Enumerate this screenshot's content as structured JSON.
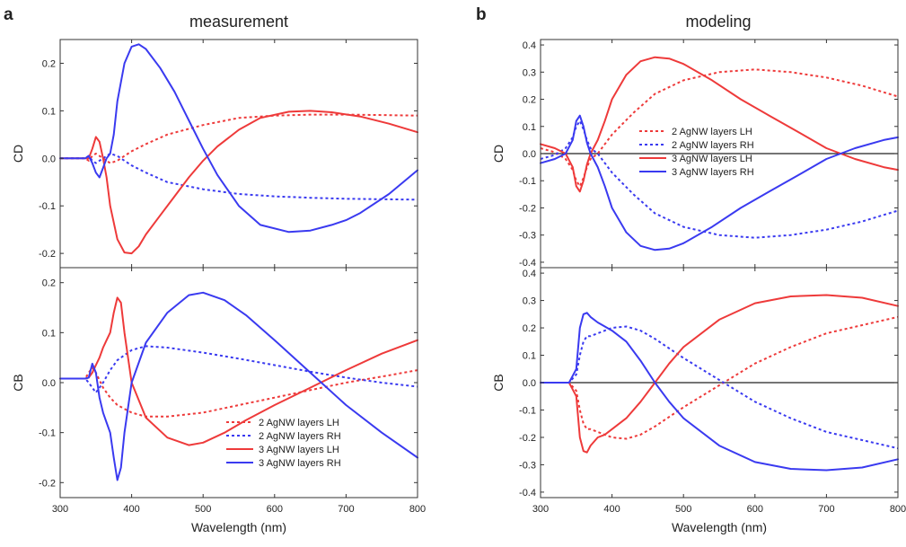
{
  "figure": {
    "panels": [
      {
        "letter": "a",
        "title": "measurement"
      },
      {
        "letter": "b",
        "title": "modeling"
      }
    ]
  },
  "colors": {
    "LH": "#ee3a3a",
    "RH": "#3a3af0",
    "axis": "#333333",
    "zero_line": "#222222"
  },
  "chart_data": [
    {
      "type": "line",
      "panel": "a",
      "title": "measurement",
      "ylabel": "CD",
      "xlabel": "",
      "xlim": [
        300,
        800
      ],
      "ylim": [
        -0.23,
        0.25
      ],
      "yticks": [
        -0.2,
        -0.1,
        0.0,
        0.1,
        0.2
      ],
      "zero_line": false,
      "legend": null,
      "series": [
        {
          "name": "2 AgNW layers LH",
          "style": "dotted",
          "color_key": "LH",
          "x": [
            300,
            320,
            335,
            340,
            345,
            350,
            355,
            360,
            370,
            380,
            390,
            400,
            420,
            450,
            500,
            550,
            600,
            650,
            700,
            750,
            800
          ],
          "y": [
            0.0,
            0.0,
            0.0,
            -0.005,
            0.005,
            0.01,
            0.005,
            0.0,
            -0.01,
            -0.005,
            0.005,
            0.015,
            0.03,
            0.05,
            0.07,
            0.085,
            0.09,
            0.092,
            0.092,
            0.091,
            0.09
          ]
        },
        {
          "name": "2 AgNW layers RH",
          "style": "dotted",
          "color_key": "RH",
          "x": [
            300,
            320,
            335,
            340,
            345,
            350,
            355,
            360,
            370,
            380,
            390,
            400,
            420,
            450,
            500,
            550,
            600,
            650,
            700,
            750,
            800
          ],
          "y": [
            0.0,
            0.0,
            0.0,
            0.005,
            -0.005,
            -0.01,
            -0.005,
            0.0,
            0.01,
            0.005,
            -0.005,
            -0.015,
            -0.03,
            -0.05,
            -0.065,
            -0.075,
            -0.08,
            -0.083,
            -0.085,
            -0.086,
            -0.087
          ]
        },
        {
          "name": "3 AgNW layers LH",
          "style": "solid",
          "color_key": "LH",
          "x": [
            300,
            320,
            335,
            340,
            345,
            350,
            355,
            360,
            365,
            370,
            380,
            390,
            400,
            410,
            420,
            440,
            460,
            480,
            500,
            520,
            550,
            580,
            620,
            650,
            680,
            720,
            760,
            800
          ],
          "y": [
            0.0,
            0.0,
            0.0,
            0.0,
            0.02,
            0.045,
            0.035,
            0.0,
            -0.04,
            -0.1,
            -0.17,
            -0.198,
            -0.2,
            -0.185,
            -0.16,
            -0.12,
            -0.08,
            -0.04,
            -0.005,
            0.025,
            0.06,
            0.085,
            0.098,
            0.1,
            0.097,
            0.088,
            0.073,
            0.055
          ]
        },
        {
          "name": "3 AgNW layers RH",
          "style": "solid",
          "color_key": "RH",
          "x": [
            300,
            320,
            335,
            340,
            345,
            350,
            355,
            360,
            365,
            370,
            375,
            380,
            390,
            400,
            410,
            420,
            440,
            460,
            480,
            500,
            520,
            550,
            580,
            620,
            650,
            680,
            700,
            720,
            760,
            800
          ],
          "y": [
            0.0,
            0.0,
            0.0,
            0.005,
            -0.01,
            -0.03,
            -0.04,
            -0.02,
            0.0,
            0.01,
            0.05,
            0.12,
            0.2,
            0.235,
            0.24,
            0.23,
            0.19,
            0.14,
            0.08,
            0.02,
            -0.035,
            -0.1,
            -0.14,
            -0.155,
            -0.152,
            -0.14,
            -0.13,
            -0.115,
            -0.075,
            -0.025
          ]
        }
      ]
    },
    {
      "type": "line",
      "panel": "a",
      "ylabel": "CB",
      "xlabel": "Wavelength (nm)",
      "xlim": [
        300,
        800
      ],
      "ylim": [
        -0.23,
        0.23
      ],
      "xticks": [
        300,
        400,
        500,
        600,
        700,
        800
      ],
      "yticks": [
        -0.2,
        -0.1,
        0.0,
        0.1,
        0.2
      ],
      "zero_line": false,
      "legend": "lower-right",
      "series": [
        {
          "name": "2 AgNW layers LH",
          "style": "dotted",
          "color_key": "LH",
          "x": [
            300,
            320,
            335,
            340,
            345,
            350,
            360,
            370,
            380,
            400,
            420,
            450,
            500,
            550,
            600,
            650,
            700,
            750,
            800
          ],
          "y": [
            0.008,
            0.008,
            0.008,
            0.02,
            0.03,
            0.02,
            -0.01,
            -0.03,
            -0.045,
            -0.06,
            -0.068,
            -0.068,
            -0.06,
            -0.045,
            -0.03,
            -0.015,
            0.0,
            0.012,
            0.025
          ]
        },
        {
          "name": "2 AgNW layers RH",
          "style": "dotted",
          "color_key": "RH",
          "x": [
            300,
            320,
            335,
            340,
            345,
            350,
            360,
            370,
            380,
            400,
            420,
            450,
            500,
            550,
            600,
            650,
            700,
            750,
            800
          ],
          "y": [
            0.008,
            0.008,
            0.008,
            0.0,
            -0.01,
            -0.02,
            0.0,
            0.025,
            0.045,
            0.065,
            0.073,
            0.07,
            0.06,
            0.048,
            0.035,
            0.022,
            0.01,
            0.0,
            -0.008
          ]
        },
        {
          "name": "3 AgNW layers LH",
          "style": "solid",
          "color_key": "LH",
          "x": [
            300,
            320,
            335,
            340,
            345,
            350,
            355,
            360,
            365,
            370,
            375,
            380,
            385,
            390,
            400,
            420,
            450,
            480,
            500,
            530,
            560,
            600,
            650,
            700,
            750,
            800
          ],
          "y": [
            0.008,
            0.008,
            0.008,
            0.01,
            0.02,
            0.035,
            0.05,
            0.07,
            0.085,
            0.1,
            0.14,
            0.17,
            0.16,
            0.1,
            0.0,
            -0.07,
            -0.11,
            -0.125,
            -0.12,
            -0.1,
            -0.075,
            -0.045,
            -0.01,
            0.025,
            0.058,
            0.085
          ]
        },
        {
          "name": "3 AgNW layers RH",
          "style": "solid",
          "color_key": "RH",
          "x": [
            300,
            320,
            335,
            340,
            345,
            350,
            355,
            360,
            365,
            370,
            375,
            380,
            385,
            390,
            400,
            420,
            450,
            480,
            500,
            530,
            560,
            600,
            650,
            700,
            750,
            800
          ],
          "y": [
            0.008,
            0.008,
            0.008,
            0.01,
            0.038,
            0.02,
            -0.03,
            -0.06,
            -0.08,
            -0.1,
            -0.15,
            -0.195,
            -0.17,
            -0.1,
            0.0,
            0.08,
            0.14,
            0.175,
            0.18,
            0.165,
            0.135,
            0.085,
            0.02,
            -0.045,
            -0.1,
            -0.15
          ]
        }
      ]
    },
    {
      "type": "line",
      "panel": "b",
      "title": "modeling",
      "ylabel": "CD",
      "xlabel": "",
      "xlim": [
        300,
        800
      ],
      "ylim": [
        -0.42,
        0.42
      ],
      "yticks": [
        -0.4,
        -0.3,
        -0.2,
        -0.1,
        0.0,
        0.1,
        0.2,
        0.3,
        0.4
      ],
      "zero_line": true,
      "legend": "upper-left",
      "series": [
        {
          "name": "2 AgNW layers LH",
          "style": "dotted",
          "color_key": "LH",
          "x": [
            300,
            320,
            335,
            345,
            350,
            355,
            360,
            365,
            370,
            380,
            400,
            430,
            460,
            500,
            550,
            600,
            650,
            700,
            750,
            800
          ],
          "y": [
            0.02,
            0.005,
            -0.02,
            -0.06,
            -0.1,
            -0.12,
            -0.09,
            -0.05,
            -0.02,
            0.0,
            0.07,
            0.15,
            0.22,
            0.27,
            0.3,
            0.31,
            0.3,
            0.28,
            0.25,
            0.21
          ]
        },
        {
          "name": "2 AgNW layers RH",
          "style": "dotted",
          "color_key": "RH",
          "x": [
            300,
            320,
            335,
            345,
            350,
            355,
            360,
            365,
            370,
            380,
            400,
            430,
            460,
            500,
            550,
            600,
            650,
            700,
            750,
            800
          ],
          "y": [
            -0.02,
            -0.005,
            0.02,
            0.06,
            0.1,
            0.12,
            0.09,
            0.05,
            0.02,
            0.0,
            -0.07,
            -0.15,
            -0.22,
            -0.27,
            -0.3,
            -0.31,
            -0.3,
            -0.28,
            -0.25,
            -0.21
          ]
        },
        {
          "name": "3 AgNW layers LH",
          "style": "solid",
          "color_key": "LH",
          "x": [
            300,
            320,
            335,
            345,
            350,
            355,
            360,
            365,
            370,
            380,
            390,
            400,
            420,
            440,
            460,
            480,
            500,
            540,
            580,
            620,
            660,
            700,
            740,
            780,
            800
          ],
          "y": [
            0.035,
            0.02,
            0.0,
            -0.05,
            -0.12,
            -0.14,
            -0.1,
            -0.04,
            0.0,
            0.05,
            0.12,
            0.2,
            0.29,
            0.34,
            0.355,
            0.35,
            0.33,
            0.27,
            0.2,
            0.14,
            0.08,
            0.02,
            -0.02,
            -0.05,
            -0.06
          ]
        },
        {
          "name": "3 AgNW layers RH",
          "style": "solid",
          "color_key": "RH",
          "x": [
            300,
            320,
            335,
            345,
            350,
            355,
            360,
            365,
            370,
            380,
            390,
            400,
            420,
            440,
            460,
            480,
            500,
            540,
            580,
            620,
            660,
            700,
            740,
            780,
            800
          ],
          "y": [
            -0.035,
            -0.02,
            0.0,
            0.05,
            0.12,
            0.14,
            0.1,
            0.04,
            0.0,
            -0.05,
            -0.12,
            -0.2,
            -0.29,
            -0.34,
            -0.355,
            -0.35,
            -0.33,
            -0.27,
            -0.2,
            -0.14,
            -0.08,
            -0.02,
            0.02,
            0.05,
            0.06
          ]
        }
      ]
    },
    {
      "type": "line",
      "panel": "b",
      "ylabel": "CB",
      "xlabel": "Wavelength (nm)",
      "xlim": [
        300,
        800
      ],
      "ylim": [
        -0.42,
        0.42
      ],
      "xticks": [
        300,
        400,
        500,
        600,
        700,
        800
      ],
      "yticks": [
        -0.4,
        -0.3,
        -0.2,
        -0.1,
        0.0,
        0.1,
        0.2,
        0.3,
        0.4
      ],
      "zero_line": true,
      "legend": null,
      "series": [
        {
          "name": "2 AgNW layers LH",
          "style": "dotted",
          "color_key": "LH",
          "x": [
            300,
            320,
            340,
            350,
            355,
            360,
            365,
            370,
            380,
            400,
            420,
            440,
            460,
            500,
            550,
            600,
            650,
            700,
            750,
            800
          ],
          "y": [
            0.0,
            0.0,
            0.0,
            -0.03,
            -0.1,
            -0.15,
            -0.17,
            -0.17,
            -0.18,
            -0.2,
            -0.205,
            -0.19,
            -0.16,
            -0.09,
            -0.01,
            0.07,
            0.13,
            0.18,
            0.21,
            0.24
          ]
        },
        {
          "name": "2 AgNW layers RH",
          "style": "dotted",
          "color_key": "RH",
          "x": [
            300,
            320,
            340,
            350,
            355,
            360,
            365,
            370,
            380,
            400,
            420,
            440,
            460,
            500,
            550,
            600,
            650,
            700,
            750,
            800
          ],
          "y": [
            0.0,
            0.0,
            0.0,
            0.03,
            0.1,
            0.15,
            0.17,
            0.17,
            0.18,
            0.2,
            0.205,
            0.19,
            0.16,
            0.09,
            0.01,
            -0.07,
            -0.13,
            -0.18,
            -0.21,
            -0.24
          ]
        },
        {
          "name": "3 AgNW layers LH",
          "style": "solid",
          "color_key": "LH",
          "x": [
            300,
            320,
            340,
            350,
            355,
            360,
            365,
            370,
            380,
            390,
            400,
            420,
            440,
            460,
            480,
            500,
            550,
            600,
            650,
            700,
            750,
            800
          ],
          "y": [
            0.0,
            0.0,
            0.0,
            -0.05,
            -0.2,
            -0.25,
            -0.255,
            -0.23,
            -0.2,
            -0.19,
            -0.17,
            -0.13,
            -0.07,
            0.0,
            0.07,
            0.13,
            0.23,
            0.29,
            0.315,
            0.32,
            0.31,
            0.28
          ]
        },
        {
          "name": "3 AgNW layers RH",
          "style": "solid",
          "color_key": "RH",
          "x": [
            300,
            320,
            340,
            350,
            355,
            360,
            365,
            370,
            380,
            390,
            400,
            420,
            440,
            460,
            480,
            500,
            550,
            600,
            650,
            700,
            750,
            800
          ],
          "y": [
            0.0,
            0.0,
            0.0,
            0.05,
            0.2,
            0.25,
            0.255,
            0.24,
            0.22,
            0.205,
            0.19,
            0.15,
            0.08,
            0.0,
            -0.07,
            -0.13,
            -0.23,
            -0.29,
            -0.315,
            -0.32,
            -0.31,
            -0.28
          ]
        }
      ]
    }
  ]
}
